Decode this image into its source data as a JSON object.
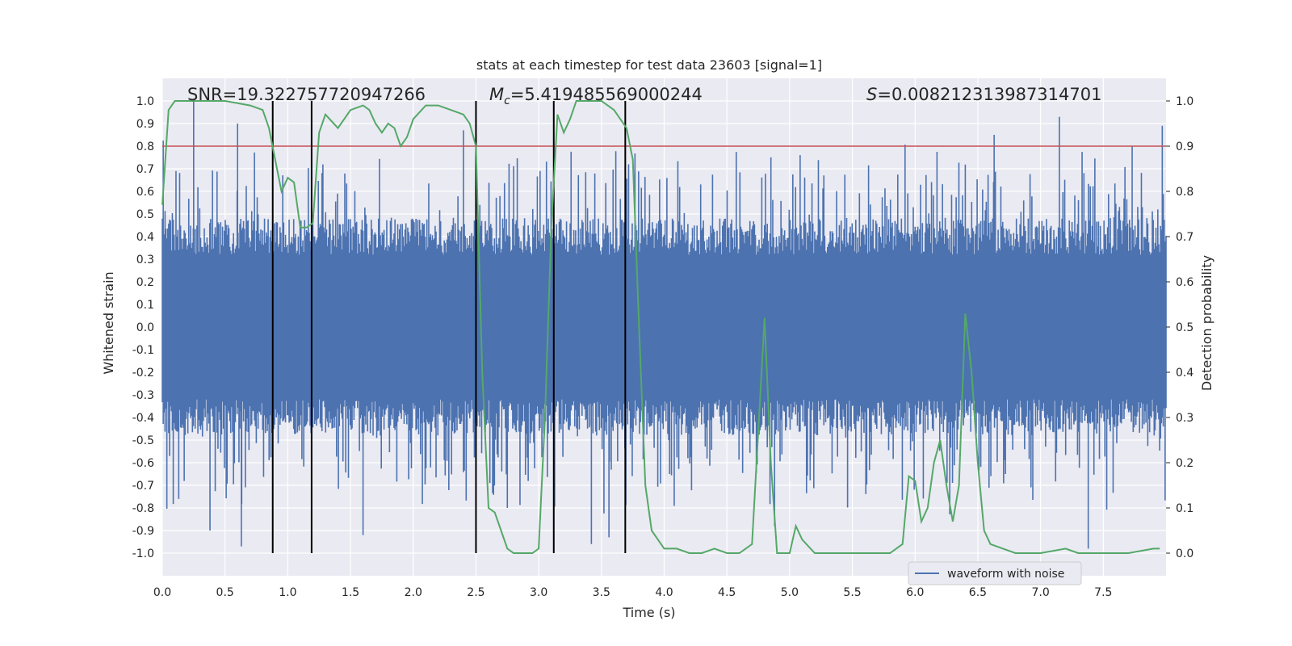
{
  "chart_data": {
    "type": "line",
    "title": "stats at each timestep for test data 23603 [signal=1]",
    "xlabel": "Time (s)",
    "ylabel_left": "Whitened strain",
    "ylabel_right": "Detection probability",
    "xlim": [
      0.0,
      8.0
    ],
    "ylim_left": [
      -1.1,
      1.1
    ],
    "ylim_right": [
      -0.05,
      1.05
    ],
    "x_ticks": [
      "0.0",
      "0.5",
      "1.0",
      "1.5",
      "2.0",
      "2.5",
      "3.0",
      "3.5",
      "4.0",
      "4.5",
      "5.0",
      "5.5",
      "6.0",
      "6.5",
      "7.0",
      "7.5"
    ],
    "x_tick_values": [
      0.0,
      0.5,
      1.0,
      1.5,
      2.0,
      2.5,
      3.0,
      3.5,
      4.0,
      4.5,
      5.0,
      5.5,
      6.0,
      6.5,
      7.0,
      7.5
    ],
    "y_left_ticks": [
      "1.0",
      "0.9",
      "0.8",
      "0.7",
      "0.6",
      "0.5",
      "0.4",
      "0.3",
      "0.2",
      "0.1",
      "0.0",
      "-0.1",
      "-0.2",
      "-0.3",
      "-0.4",
      "-0.5",
      "-0.6",
      "-0.7",
      "-0.8",
      "-0.9",
      "-1.0"
    ],
    "y_left_tick_values": [
      1.0,
      0.9,
      0.8,
      0.7,
      0.6,
      0.5,
      0.4,
      0.3,
      0.2,
      0.1,
      0.0,
      -0.1,
      -0.2,
      -0.3,
      -0.4,
      -0.5,
      -0.6,
      -0.7,
      -0.8,
      -0.9,
      -1.0
    ],
    "y_right_ticks": [
      "1.0",
      "0.9",
      "0.8",
      "0.7",
      "0.6",
      "0.5",
      "0.4",
      "0.3",
      "0.2",
      "0.1",
      "0.0"
    ],
    "y_right_tick_values": [
      1.0,
      0.9,
      0.8,
      0.7,
      0.6,
      0.5,
      0.4,
      0.3,
      0.2,
      0.1,
      0.0
    ],
    "annotations": {
      "snr": "SNR=19.322757720947266",
      "mc": "=5.419485569000244",
      "s": "=0.008212313987314701"
    },
    "threshold": {
      "value": 0.9,
      "axis": "right",
      "color": "#c44e52"
    },
    "vertical_lines": [
      0.88,
      1.19,
      2.5,
      3.12,
      3.69
    ],
    "vertical_line_range_left": [
      -1.0,
      1.0
    ],
    "legend": {
      "label": "waveform with noise",
      "position": "lower-right"
    },
    "series": [
      {
        "name": "waveform with noise",
        "axis": "left",
        "color": "#4c72b0",
        "x_range": [
          0.0,
          8.0
        ],
        "noise_body_amplitude": 0.32,
        "peak_values": [
          {
            "x": 0.25,
            "y": 1.0
          },
          {
            "x": 0.6,
            "y": 0.9
          },
          {
            "x": 0.63,
            "y": -0.97
          },
          {
            "x": 0.38,
            "y": -0.9
          },
          {
            "x": 1.6,
            "y": -0.92
          },
          {
            "x": 2.4,
            "y": 0.87
          },
          {
            "x": 2.75,
            "y": -0.8
          },
          {
            "x": 3.42,
            "y": -0.96
          },
          {
            "x": 3.56,
            "y": -0.93
          },
          {
            "x": 4.88,
            "y": -0.88
          },
          {
            "x": 7.15,
            "y": 0.93
          },
          {
            "x": 7.38,
            "y": -0.98
          },
          {
            "x": 7.97,
            "y": 0.89
          },
          {
            "x": 6.63,
            "y": 0.85
          },
          {
            "x": 7.73,
            "y": 0.8
          }
        ]
      },
      {
        "name": "Detection probability",
        "axis": "right",
        "color": "#55a868",
        "x": [
          0.0,
          0.05,
          0.1,
          0.15,
          0.2,
          0.3,
          0.5,
          0.7,
          0.8,
          0.85,
          0.9,
          0.95,
          1.0,
          1.05,
          1.1,
          1.15,
          1.2,
          1.25,
          1.3,
          1.4,
          1.5,
          1.6,
          1.65,
          1.7,
          1.75,
          1.8,
          1.85,
          1.9,
          1.95,
          2.0,
          2.1,
          2.2,
          2.3,
          2.4,
          2.45,
          2.5,
          2.55,
          2.6,
          2.65,
          2.7,
          2.75,
          2.8,
          2.85,
          2.9,
          2.95,
          3.0,
          3.05,
          3.1,
          3.15,
          3.2,
          3.25,
          3.3,
          3.4,
          3.5,
          3.6,
          3.7,
          3.75,
          3.8,
          3.85,
          3.9,
          4.0,
          4.1,
          4.2,
          4.3,
          4.4,
          4.5,
          4.6,
          4.7,
          4.8,
          4.85,
          4.9,
          4.95,
          5.0,
          5.05,
          5.1,
          5.2,
          5.3,
          5.5,
          5.7,
          5.8,
          5.9,
          5.95,
          6.0,
          6.05,
          6.1,
          6.15,
          6.2,
          6.25,
          6.3,
          6.35,
          6.4,
          6.45,
          6.5,
          6.55,
          6.6,
          6.7,
          6.8,
          7.0,
          7.2,
          7.3,
          7.4,
          7.5,
          7.7,
          7.9,
          7.95
        ],
        "y": [
          0.77,
          0.98,
          1.0,
          1.0,
          1.0,
          1.0,
          1.0,
          0.99,
          0.98,
          0.94,
          0.87,
          0.8,
          0.83,
          0.82,
          0.72,
          0.72,
          0.73,
          0.93,
          0.97,
          0.94,
          0.98,
          0.99,
          0.98,
          0.95,
          0.93,
          0.95,
          0.94,
          0.9,
          0.92,
          0.96,
          0.99,
          0.99,
          0.98,
          0.97,
          0.95,
          0.9,
          0.4,
          0.1,
          0.09,
          0.05,
          0.01,
          0.0,
          0.0,
          0.0,
          0.0,
          0.01,
          0.3,
          0.72,
          0.97,
          0.93,
          0.96,
          1.0,
          1.0,
          1.0,
          0.98,
          0.94,
          0.87,
          0.5,
          0.15,
          0.05,
          0.01,
          0.01,
          0.0,
          0.0,
          0.01,
          0.0,
          0.0,
          0.02,
          0.52,
          0.2,
          0.0,
          0.0,
          0.0,
          0.06,
          0.03,
          0.0,
          0.0,
          0.0,
          0.0,
          0.0,
          0.02,
          0.17,
          0.16,
          0.07,
          0.1,
          0.2,
          0.25,
          0.15,
          0.07,
          0.15,
          0.53,
          0.4,
          0.2,
          0.05,
          0.02,
          0.01,
          0.0,
          0.0,
          0.01,
          0.0,
          0.0,
          0.0,
          0.0,
          0.01,
          0.01
        ]
      }
    ]
  }
}
